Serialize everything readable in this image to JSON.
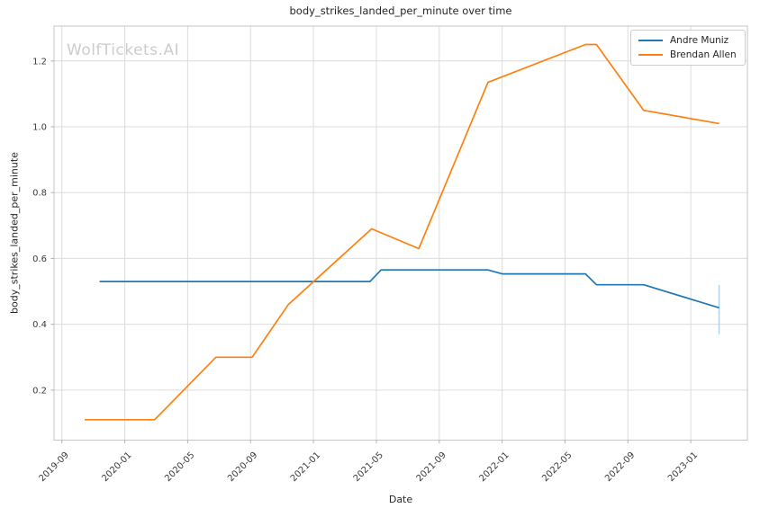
{
  "watermark": "WolfTickets.AI",
  "chart_data": {
    "type": "line",
    "title": "body_strikes_landed_per_minute over time",
    "xlabel": "Date",
    "ylabel": "body_strikes_landed_per_minute",
    "grid": true,
    "legend_position": "upper right",
    "x_unit": "months since 2019-09",
    "xlim": [
      -0.5,
      43.6
    ],
    "ylim": [
      0.048,
      1.306
    ],
    "xticks": {
      "positions": [
        0,
        4,
        8,
        12,
        16,
        20,
        24,
        28,
        32,
        36,
        40
      ],
      "labels": [
        "2019-09",
        "2020-01",
        "2020-05",
        "2020-09",
        "2021-01",
        "2021-05",
        "2021-09",
        "2022-01",
        "2022-05",
        "2022-09",
        "2023-01"
      ]
    },
    "yticks": {
      "positions": [
        0.2,
        0.4,
        0.6,
        0.8,
        1.0,
        1.2
      ],
      "labels": [
        "0.2",
        "0.4",
        "0.6",
        "0.8",
        "1.0",
        "1.2"
      ]
    },
    "series": [
      {
        "name": "Andre Muniz",
        "color": "#1f77b4",
        "approx_dates": [
          "2019-11",
          "2021-04",
          "2021-05",
          "2021-12",
          "2022-01",
          "2022-06",
          "2022-07",
          "2022-10",
          "2023-02"
        ],
        "points": [
          [
            2.4,
            0.53
          ],
          [
            19.6,
            0.53
          ],
          [
            20.3,
            0.565
          ],
          [
            27.1,
            0.565
          ],
          [
            28.0,
            0.553
          ],
          [
            33.3,
            0.553
          ],
          [
            34.0,
            0.52
          ],
          [
            37.0,
            0.52
          ],
          [
            41.8,
            0.45
          ]
        ]
      },
      {
        "name": "Brendan Allen",
        "color": "#ff7f0e",
        "approx_dates": [
          "2019-10",
          "2020-03",
          "2020-07",
          "2020-09",
          "2020-11",
          "2021-05",
          "2021-08",
          "2021-12",
          "2022-06",
          "2022-07",
          "2022-10",
          "2023-02"
        ],
        "points": [
          [
            1.45,
            0.11
          ],
          [
            5.9,
            0.11
          ],
          [
            9.8,
            0.3
          ],
          [
            12.1,
            0.3
          ],
          [
            14.4,
            0.46
          ],
          [
            19.7,
            0.69
          ],
          [
            22.7,
            0.63
          ],
          [
            27.1,
            1.135
          ],
          [
            33.3,
            1.25
          ],
          [
            34.0,
            1.25
          ],
          [
            37.0,
            1.05
          ],
          [
            41.8,
            1.01
          ]
        ]
      }
    ],
    "error_bars": [
      {
        "series": "Andre Muniz",
        "x": 41.8,
        "y": 0.45,
        "y_min": 0.37,
        "y_max": 0.52,
        "color": "#aed0e6"
      }
    ],
    "style": {
      "grid_color": "#dcdcdc",
      "spine_color": "#c2c6ca",
      "tick_color": "#b0b0b0",
      "tick_label_color": "#3b3b3b",
      "watermark_color": "#cccccc",
      "background": "#ffffff"
    }
  }
}
